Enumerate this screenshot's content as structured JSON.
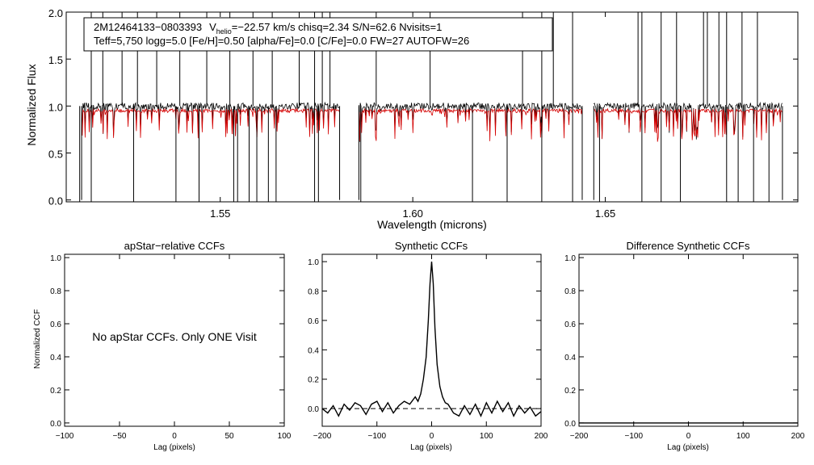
{
  "chart_data": [
    {
      "type": "line",
      "id": "spectrum",
      "xlabel": "Wavelength (microns)",
      "ylabel": "Normalized Flux",
      "xlim": [
        1.51,
        1.7
      ],
      "ylim": [
        -0.02,
        2.0
      ],
      "xticks": [
        {
          "value": 1.55,
          "label": "1.55"
        },
        {
          "value": 1.6,
          "label": "1.60"
        },
        {
          "value": 1.65,
          "label": "1.65"
        }
      ],
      "yticks": [
        {
          "value": 0.0,
          "label": "0.0"
        },
        {
          "value": 0.5,
          "label": "0.5"
        },
        {
          "value": 1.0,
          "label": "1.0"
        },
        {
          "value": 1.5,
          "label": "1.5"
        },
        {
          "value": 2.0,
          "label": "2.0"
        }
      ],
      "info_line1": {
        "star": "2M12464133−0803393",
        "v_symbol": "V",
        "v_subscript": "helio",
        "v_rest": "=−22.57 km/s  chisq=2.34  S/N=62.6  Nvisits=1"
      },
      "info_line2": "Teff=5,750 logg=5.0 [Fe/H]=0.50 [alpha/Fe]=0.0 [C/Fe]=0.0 FW=27 AUTOFW=26",
      "chips": [
        [
          1.514,
          1.581
        ],
        [
          1.586,
          1.644
        ],
        [
          1.647,
          1.696
        ]
      ],
      "series": [
        {
          "name": "observed",
          "color": "#000000",
          "baseline": 1.0
        },
        {
          "name": "model",
          "color": "#d40000",
          "baseline": 0.95
        }
      ],
      "spikes_up": [
        1.5165,
        1.5195,
        1.5245,
        1.5285,
        1.5335,
        1.5395,
        1.5465,
        1.5525,
        1.5585,
        1.5635,
        1.5705,
        1.5745,
        1.5765,
        1.5785,
        1.5905,
        1.6045,
        1.6285,
        1.6335,
        1.6365,
        1.6415,
        1.6585,
        1.6595,
        1.6645,
        1.6685,
        1.6755,
        1.6765,
        1.6795,
        1.6815,
        1.6855,
        1.6895
      ],
      "spikes_down": [
        1.5135,
        1.5165,
        1.5275,
        1.5385,
        1.5445,
        1.5535,
        1.5545,
        1.5575,
        1.5595,
        1.5625,
        1.5645,
        1.5745,
        1.5755,
        1.5865,
        1.6155,
        1.6245,
        1.6335,
        1.6415,
        1.6485,
        1.6595,
        1.6645,
        1.6695,
        1.6815,
        1.6845,
        1.6885,
        1.6925
      ]
    },
    {
      "type": "line",
      "id": "apstar-ccf",
      "title": "apStar−relative CCFs",
      "xlabel": "Lag (pixels)",
      "ylabel": "Normalized CCF",
      "xlim": [
        -100,
        100
      ],
      "ylim": [
        -0.02,
        1.02
      ],
      "xticks": [
        {
          "value": -100,
          "label": "−100"
        },
        {
          "value": -50,
          "label": "−50"
        },
        {
          "value": 0,
          "label": "0"
        },
        {
          "value": 50,
          "label": "50"
        },
        {
          "value": 100,
          "label": "100"
        }
      ],
      "yticks": [
        {
          "value": 0.0,
          "label": "0.0"
        },
        {
          "value": 0.2,
          "label": "0.2"
        },
        {
          "value": 0.4,
          "label": "0.4"
        },
        {
          "value": 0.6,
          "label": "0.6"
        },
        {
          "value": 0.8,
          "label": "0.8"
        },
        {
          "value": 1.0,
          "label": "1.0"
        }
      ],
      "annotation": "No apStar CCFs.  Only ONE Visit",
      "series": []
    },
    {
      "type": "line",
      "id": "synthetic-ccf",
      "title": "Synthetic CCFs",
      "xlabel": "Lag (pixels)",
      "xlim": [
        -200,
        200
      ],
      "ylim": [
        -0.12,
        1.05
      ],
      "xticks": [
        {
          "value": -200,
          "label": "−200"
        },
        {
          "value": -100,
          "label": "−100"
        },
        {
          "value": 0,
          "label": "0"
        },
        {
          "value": 100,
          "label": "100"
        },
        {
          "value": 200,
          "label": "200"
        }
      ],
      "yticks": [
        {
          "value": 0.0,
          "label": "0.0"
        },
        {
          "value": 0.2,
          "label": "0.2"
        },
        {
          "value": 0.4,
          "label": "0.4"
        },
        {
          "value": 0.6,
          "label": "0.6"
        },
        {
          "value": 0.8,
          "label": "0.8"
        },
        {
          "value": 1.0,
          "label": "1.0"
        }
      ],
      "reference_line": {
        "y": 0.0,
        "style": "dashed"
      },
      "series": [
        {
          "name": "ccf",
          "color": "#000000",
          "x": [
            -200,
            -190,
            -180,
            -170,
            -160,
            -150,
            -140,
            -130,
            -120,
            -110,
            -100,
            -90,
            -80,
            -70,
            -60,
            -50,
            -40,
            -30,
            -25,
            -20,
            -15,
            -10,
            -6,
            -3,
            0,
            3,
            6,
            10,
            15,
            20,
            25,
            30,
            40,
            50,
            60,
            70,
            80,
            90,
            100,
            110,
            120,
            130,
            140,
            150,
            160,
            170,
            180,
            190,
            200
          ],
          "y": [
            0.0,
            -0.03,
            0.02,
            -0.05,
            0.03,
            -0.01,
            0.04,
            0.02,
            -0.04,
            0.03,
            0.05,
            -0.02,
            0.04,
            -0.03,
            0.02,
            0.05,
            0.03,
            0.08,
            0.05,
            0.1,
            0.2,
            0.35,
            0.6,
            0.85,
            1.0,
            0.85,
            0.55,
            0.3,
            0.15,
            0.08,
            0.04,
            0.03,
            -0.03,
            -0.05,
            0.02,
            -0.04,
            0.03,
            -0.05,
            0.04,
            -0.03,
            0.05,
            -0.02,
            0.04,
            -0.05,
            0.02,
            -0.03,
            0.01,
            -0.05,
            -0.02
          ]
        }
      ]
    },
    {
      "type": "line",
      "id": "difference-ccf",
      "title": "Difference Synthetic CCFs",
      "xlabel": "Lag (pixels)",
      "xlim": [
        -200,
        200
      ],
      "ylim": [
        -0.02,
        1.02
      ],
      "xticks": [
        {
          "value": -200,
          "label": "−200"
        },
        {
          "value": -100,
          "label": "−100"
        },
        {
          "value": 0,
          "label": "0"
        },
        {
          "value": 100,
          "label": "100"
        },
        {
          "value": 200,
          "label": "200"
        }
      ],
      "yticks": [
        {
          "value": 0.0,
          "label": "0.0"
        },
        {
          "value": 0.2,
          "label": "0.2"
        },
        {
          "value": 0.4,
          "label": "0.4"
        },
        {
          "value": 0.6,
          "label": "0.6"
        },
        {
          "value": 0.8,
          "label": "0.8"
        },
        {
          "value": 1.0,
          "label": "1.0"
        }
      ],
      "series": [
        {
          "name": "difference",
          "color": "#000000",
          "x": [
            -200,
            200
          ],
          "y": [
            0.0,
            0.0
          ]
        }
      ]
    }
  ]
}
